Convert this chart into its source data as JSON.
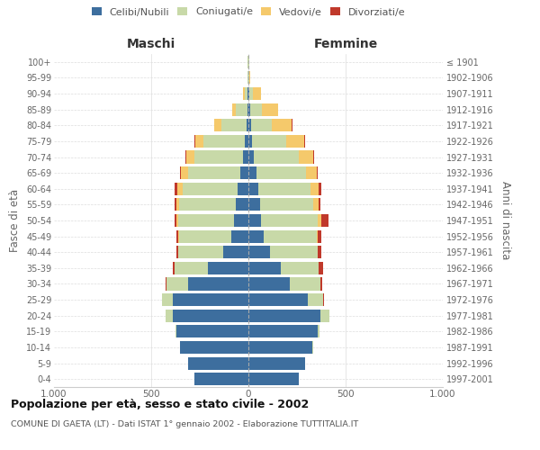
{
  "age_groups": [
    "0-4",
    "5-9",
    "10-14",
    "15-19",
    "20-24",
    "25-29",
    "30-34",
    "35-39",
    "40-44",
    "45-49",
    "50-54",
    "55-59",
    "60-64",
    "65-69",
    "70-74",
    "75-79",
    "80-84",
    "85-89",
    "90-94",
    "95-99",
    "100+"
  ],
  "birth_years": [
    "1997-2001",
    "1992-1996",
    "1987-1991",
    "1982-1986",
    "1977-1981",
    "1972-1976",
    "1967-1971",
    "1962-1966",
    "1957-1961",
    "1952-1956",
    "1947-1951",
    "1942-1946",
    "1937-1941",
    "1932-1936",
    "1927-1931",
    "1922-1926",
    "1917-1921",
    "1912-1916",
    "1907-1911",
    "1902-1906",
    "≤ 1901"
  ],
  "males": {
    "celibi": [
      280,
      310,
      350,
      370,
      390,
      390,
      310,
      210,
      130,
      90,
      75,
      65,
      55,
      40,
      30,
      20,
      10,
      5,
      3,
      2,
      2
    ],
    "coniugati": [
      0,
      1,
      2,
      5,
      35,
      55,
      110,
      170,
      230,
      265,
      285,
      290,
      285,
      270,
      250,
      210,
      130,
      60,
      15,
      3,
      1
    ],
    "vedovi": [
      0,
      0,
      0,
      0,
      0,
      0,
      0,
      1,
      2,
      5,
      10,
      15,
      25,
      35,
      40,
      45,
      35,
      20,
      8,
      1,
      0
    ],
    "divorziati": [
      0,
      0,
      0,
      0,
      0,
      0,
      5,
      8,
      10,
      10,
      8,
      10,
      15,
      5,
      5,
      5,
      2,
      0,
      0,
      0,
      0
    ]
  },
  "females": {
    "nubili": [
      260,
      290,
      330,
      355,
      370,
      305,
      215,
      165,
      110,
      80,
      65,
      60,
      50,
      40,
      30,
      20,
      12,
      8,
      5,
      2,
      2
    ],
    "coniugate": [
      0,
      1,
      2,
      10,
      45,
      80,
      155,
      195,
      245,
      270,
      290,
      275,
      270,
      255,
      230,
      175,
      110,
      60,
      20,
      4,
      1
    ],
    "vedove": [
      0,
      0,
      0,
      0,
      0,
      0,
      1,
      2,
      3,
      8,
      20,
      25,
      40,
      55,
      75,
      90,
      100,
      85,
      40,
      5,
      1
    ],
    "divorziate": [
      0,
      0,
      0,
      0,
      2,
      5,
      10,
      20,
      15,
      15,
      35,
      10,
      15,
      5,
      5,
      5,
      3,
      2,
      0,
      0,
      0
    ]
  },
  "colors": {
    "celibi": "#3d6e9e",
    "coniugati": "#c8d9a8",
    "vedovi": "#f5c96b",
    "divorziati": "#c0392b"
  },
  "xlim": 1000,
  "title": "Popolazione per età, sesso e stato civile - 2002",
  "subtitle": "COMUNE DI GAETA (LT) - Dati ISTAT 1° gennaio 2002 - Elaborazione TUTTITALIA.IT",
  "ylabel_left": "Fasce di età",
  "ylabel_right": "Anni di nascita",
  "xlabel_left": "Maschi",
  "xlabel_right": "Femmine",
  "legend_labels": [
    "Celibi/Nubili",
    "Coniugati/e",
    "Vedovi/e",
    "Divorziati/e"
  ],
  "background_color": "#ffffff",
  "grid_color": "#cccccc"
}
